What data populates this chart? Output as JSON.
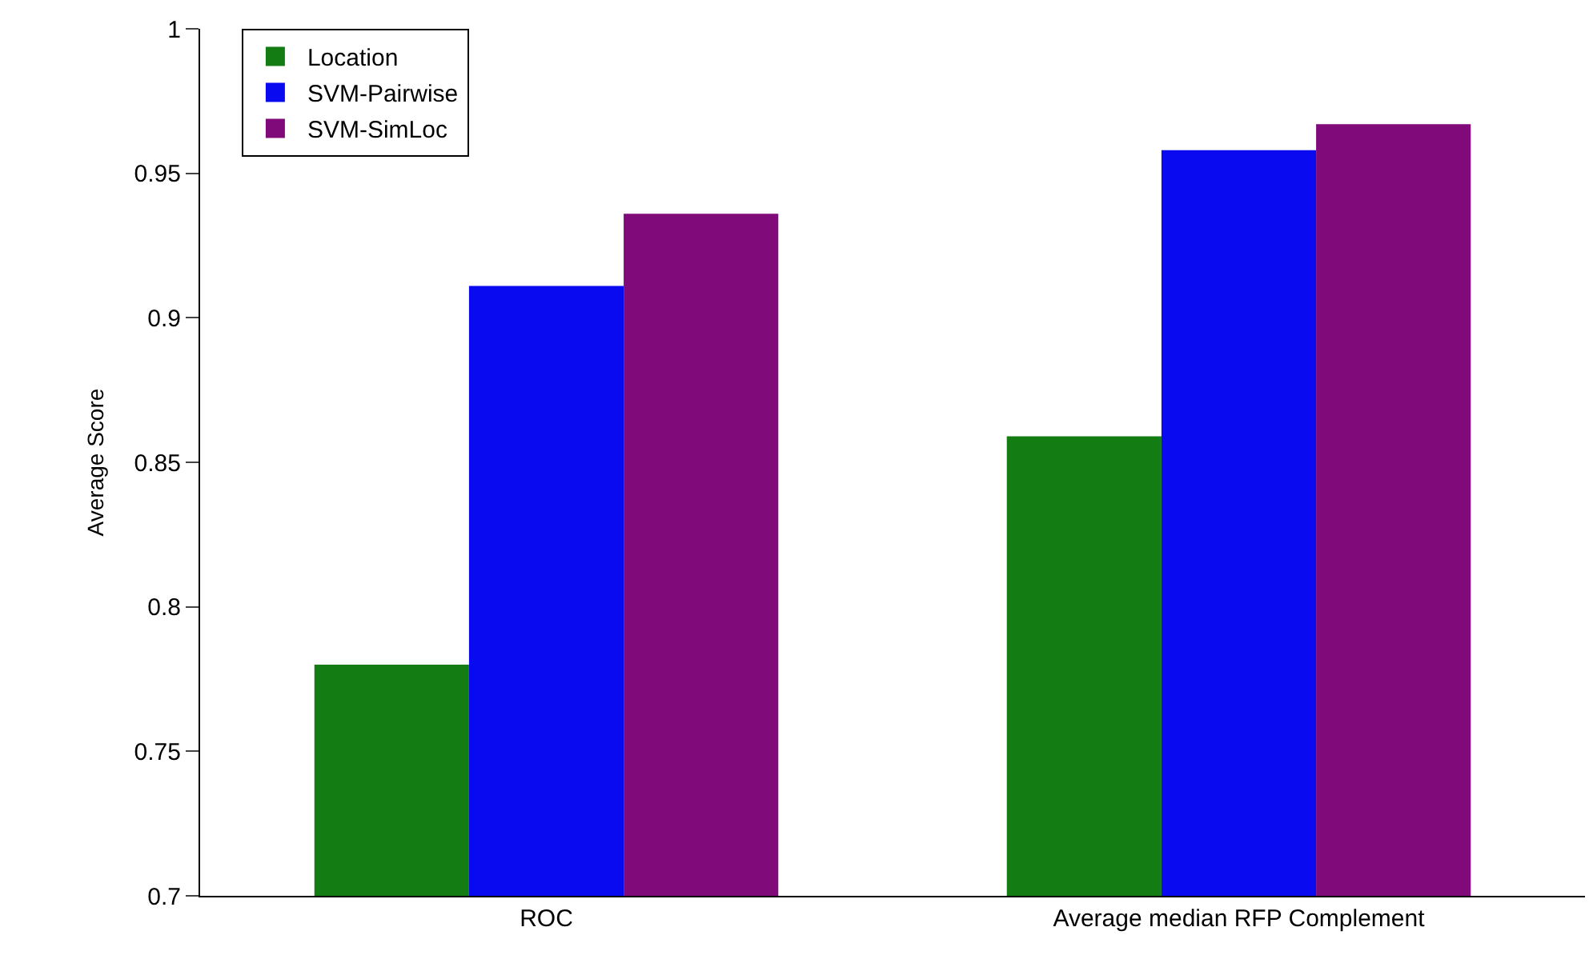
{
  "chart_data": {
    "type": "bar",
    "ylabel": "Average Score",
    "categories": [
      "ROC",
      "Average median RFP Complement"
    ],
    "series": [
      {
        "name": "Location",
        "color": "#137d13",
        "values": [
          0.78,
          0.859
        ]
      },
      {
        "name": "SVM-Pairwise",
        "color": "#0a0af0",
        "values": [
          0.911,
          0.958
        ]
      },
      {
        "name": "SVM-SimLoc",
        "color": "#800a7a",
        "values": [
          0.936,
          0.967
        ]
      }
    ],
    "ylim": [
      0.7,
      1
    ],
    "yticks": [
      0.7,
      0.75,
      0.8,
      0.85,
      0.9,
      0.95,
      1
    ],
    "legend": "top left"
  }
}
